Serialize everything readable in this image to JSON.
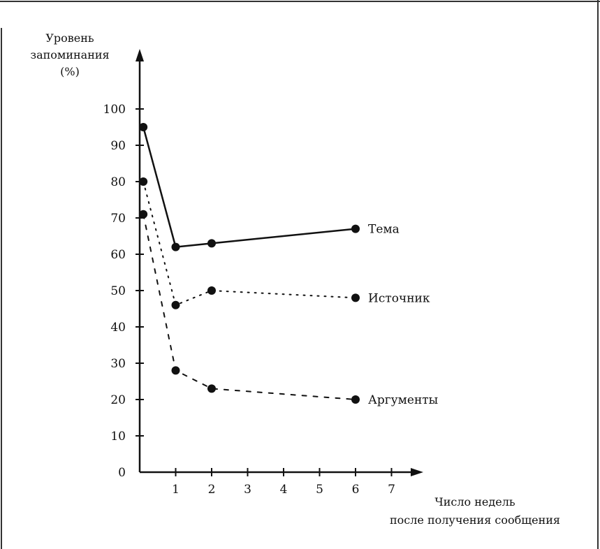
{
  "chart_data": {
    "type": "line",
    "ylabel_lines": [
      "Уровень",
      "запоминания",
      "(%)"
    ],
    "xlabel_lines": [
      "Число недель",
      "после получения сообщения"
    ],
    "x_ticks": [
      "1",
      "2",
      "3",
      "4",
      "5",
      "6",
      "7"
    ],
    "y_ticks": [
      "0",
      "10",
      "20",
      "30",
      "40",
      "50",
      "60",
      "70",
      "80",
      "90",
      "100"
    ],
    "xlim": [
      0,
      7
    ],
    "ylim": [
      0,
      100
    ],
    "series": [
      {
        "name": "Тема",
        "style": "solid",
        "points": [
          {
            "x": 0.1,
            "y": 95
          },
          {
            "x": 1,
            "y": 62
          },
          {
            "x": 2,
            "y": 63
          },
          {
            "x": 6,
            "y": 67
          }
        ]
      },
      {
        "name": "Источник",
        "style": "dotted",
        "points": [
          {
            "x": 0.1,
            "y": 80
          },
          {
            "x": 1,
            "y": 46
          },
          {
            "x": 2,
            "y": 50
          },
          {
            "x": 6,
            "y": 48
          }
        ]
      },
      {
        "name": "Аргументы",
        "style": "dashed",
        "points": [
          {
            "x": 0.1,
            "y": 71
          },
          {
            "x": 1,
            "y": 28
          },
          {
            "x": 2,
            "y": 23
          },
          {
            "x": 6,
            "y": 20
          }
        ]
      }
    ],
    "colors": {
      "ink": "#111111",
      "background": "#ffffff"
    }
  }
}
